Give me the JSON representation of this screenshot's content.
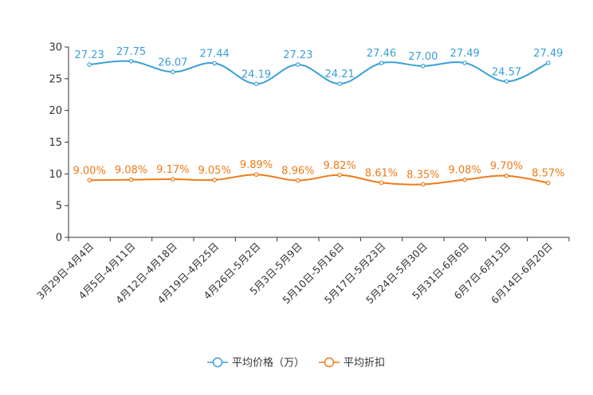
{
  "chart_data": {
    "type": "line",
    "title": "",
    "xlabel": "",
    "ylabel": "",
    "ylim": [
      0,
      30
    ],
    "yticks": [
      0,
      5,
      10,
      15,
      20,
      25,
      30
    ],
    "categories": [
      "3月29日-4月4日",
      "4月5日-4月11日",
      "4月12日-4月18日",
      "4月19日-4月25日",
      "4月26日-5月2日",
      "5月3日-5月9日",
      "5月10日-5月16日",
      "5月17日-5月23日",
      "5月24日-5月30日",
      "5月31日-6月6日",
      "6月7日-6月13日",
      "6月14日-6月20日"
    ],
    "series": [
      {
        "name": "平均价格（万）",
        "color": "#3a9fd6",
        "values": [
          27.23,
          27.75,
          26.07,
          27.44,
          24.19,
          27.23,
          24.21,
          27.46,
          27.0,
          27.49,
          24.57,
          27.49
        ],
        "labels": [
          "27.23",
          "27.75",
          "26.07",
          "27.44",
          "24.19",
          "27.23",
          "24.21",
          "27.46",
          "27.00",
          "27.49",
          "24.57",
          "27.49"
        ]
      },
      {
        "name": "平均折扣",
        "color": "#f07a18",
        "values": [
          9.0,
          9.08,
          9.17,
          9.05,
          9.89,
          8.96,
          9.82,
          8.61,
          8.35,
          9.08,
          9.7,
          8.57
        ],
        "labels": [
          "9.00%",
          "9.08%",
          "9.17%",
          "9.05%",
          "9.89%",
          "8.96%",
          "9.82%",
          "8.61%",
          "8.35%",
          "9.08%",
          "9.70%",
          "8.57%"
        ]
      }
    ],
    "legend": {
      "position": "bottom-center"
    },
    "grid": false
  }
}
